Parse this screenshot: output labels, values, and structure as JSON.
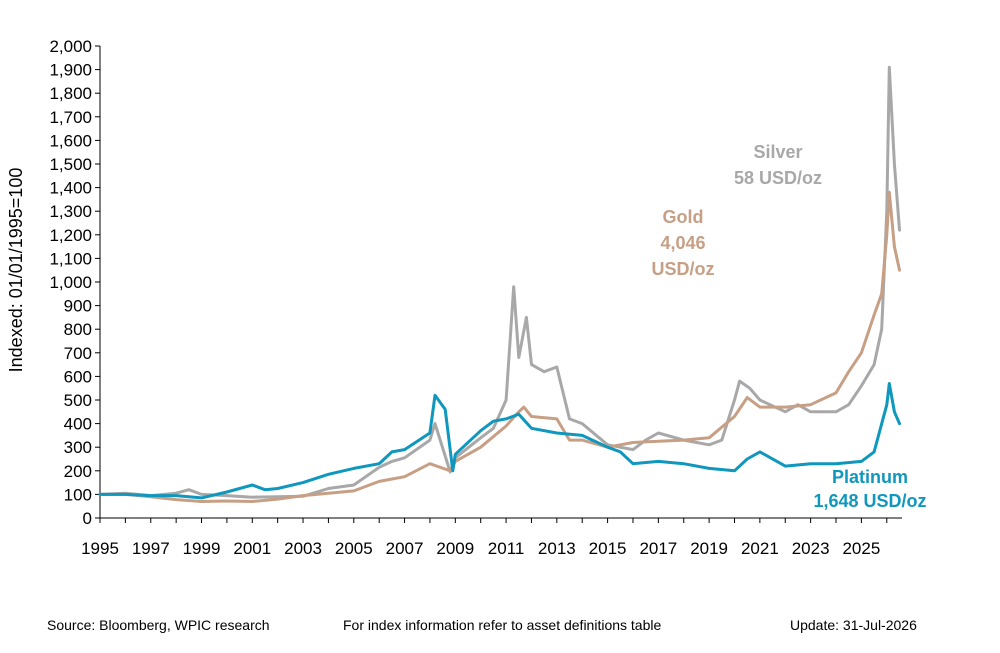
{
  "colors": {
    "silver": "#a8a8a8",
    "gold": "#c79f85",
    "platinum": "#0f97bd"
  },
  "chart_data": {
    "type": "line",
    "ylabel": "Indexed: 01/01/1995=100",
    "xlim": [
      1995,
      2026.6
    ],
    "ylim": [
      0,
      2000
    ],
    "yticks": [
      "0",
      "100",
      "200",
      "300",
      "400",
      "500",
      "600",
      "700",
      "800",
      "900",
      "1,000",
      "1,100",
      "1,200",
      "1,300",
      "1,400",
      "1,500",
      "1,600",
      "1,700",
      "1,800",
      "1,900",
      "2,000"
    ],
    "xticks": [
      "1995",
      "1997",
      "1999",
      "2001",
      "2003",
      "2005",
      "2007",
      "2009",
      "2011",
      "2013",
      "2015",
      "2017",
      "2019",
      "2021",
      "2023",
      "2025"
    ],
    "grid": false,
    "legend": "inline labels",
    "series": [
      {
        "name": "Silver",
        "label_lines": [
          "Silver",
          "58 USD/oz"
        ],
        "x": [
          1995.0,
          1996.0,
          1997.0,
          1998.0,
          1998.5,
          1999.0,
          2000.0,
          2001.0,
          2002.0,
          2003.0,
          2004.0,
          2005.0,
          2006.0,
          2006.5,
          2007.0,
          2008.0,
          2008.2,
          2008.8,
          2009.0,
          2010.0,
          2010.5,
          2011.0,
          2011.3,
          2011.5,
          2011.8,
          2012.0,
          2012.5,
          2013.0,
          2013.5,
          2014.0,
          2015.0,
          2016.0,
          2016.5,
          2017.0,
          2018.0,
          2019.0,
          2019.5,
          2020.0,
          2020.2,
          2020.6,
          2021.0,
          2022.0,
          2022.5,
          2023.0,
          2024.0,
          2024.5,
          2025.0,
          2025.5,
          2025.8,
          2026.0,
          2026.1,
          2026.3,
          2026.5
        ],
        "y": [
          100,
          105,
          95,
          105,
          120,
          100,
          95,
          88,
          90,
          92,
          125,
          140,
          215,
          240,
          255,
          330,
          400,
          195,
          255,
          340,
          380,
          500,
          980,
          680,
          850,
          650,
          620,
          640,
          420,
          400,
          310,
          290,
          330,
          360,
          330,
          310,
          330,
          500,
          580,
          550,
          500,
          450,
          480,
          450,
          450,
          480,
          560,
          650,
          800,
          1300,
          1910,
          1500,
          1220
        ]
      },
      {
        "name": "Gold",
        "label_lines": [
          "Gold",
          "4,046",
          "USD/oz"
        ],
        "x": [
          1995.0,
          1996.0,
          1997.0,
          1998.0,
          1999.0,
          2000.0,
          2001.0,
          2002.0,
          2003.0,
          2004.0,
          2005.0,
          2006.0,
          2007.0,
          2008.0,
          2008.8,
          2009.0,
          2010.0,
          2011.0,
          2011.5,
          2011.7,
          2012.0,
          2013.0,
          2013.5,
          2014.0,
          2015.0,
          2016.0,
          2017.0,
          2018.0,
          2019.0,
          2020.0,
          2020.5,
          2021.0,
          2022.0,
          2023.0,
          2024.0,
          2024.5,
          2025.0,
          2025.5,
          2025.8,
          2026.0,
          2026.1,
          2026.3,
          2026.5
        ],
        "y": [
          100,
          100,
          90,
          78,
          70,
          72,
          70,
          80,
          95,
          105,
          115,
          155,
          175,
          230,
          200,
          240,
          300,
          390,
          450,
          470,
          430,
          420,
          330,
          330,
          300,
          320,
          325,
          330,
          340,
          430,
          510,
          470,
          470,
          480,
          530,
          620,
          700,
          860,
          950,
          1200,
          1380,
          1150,
          1050
        ]
      },
      {
        "name": "Platinum",
        "label_lines": [
          "Platinum",
          "1,648 USD/oz"
        ],
        "x": [
          1995.0,
          1996.0,
          1997.0,
          1998.0,
          1999.0,
          2000.0,
          2001.0,
          2001.5,
          2002.0,
          2003.0,
          2004.0,
          2005.0,
          2006.0,
          2006.5,
          2007.0,
          2008.0,
          2008.2,
          2008.6,
          2008.9,
          2009.0,
          2010.0,
          2010.5,
          2011.0,
          2011.5,
          2012.0,
          2013.0,
          2014.0,
          2015.0,
          2015.5,
          2016.0,
          2017.0,
          2018.0,
          2019.0,
          2020.0,
          2020.5,
          2021.0,
          2022.0,
          2023.0,
          2024.0,
          2025.0,
          2025.5,
          2026.0,
          2026.1,
          2026.3,
          2026.5
        ],
        "y": [
          100,
          100,
          95,
          95,
          85,
          110,
          140,
          120,
          125,
          150,
          185,
          210,
          230,
          280,
          290,
          360,
          520,
          460,
          200,
          270,
          370,
          410,
          420,
          440,
          380,
          360,
          350,
          300,
          280,
          230,
          240,
          230,
          210,
          200,
          250,
          280,
          220,
          230,
          230,
          240,
          280,
          480,
          570,
          450,
          400
        ]
      }
    ]
  },
  "footer": {
    "source": "Source: Bloomberg, WPIC research",
    "index_info": "For index information refer to asset definitions table",
    "update": "Update: 31-Jul-2026"
  }
}
